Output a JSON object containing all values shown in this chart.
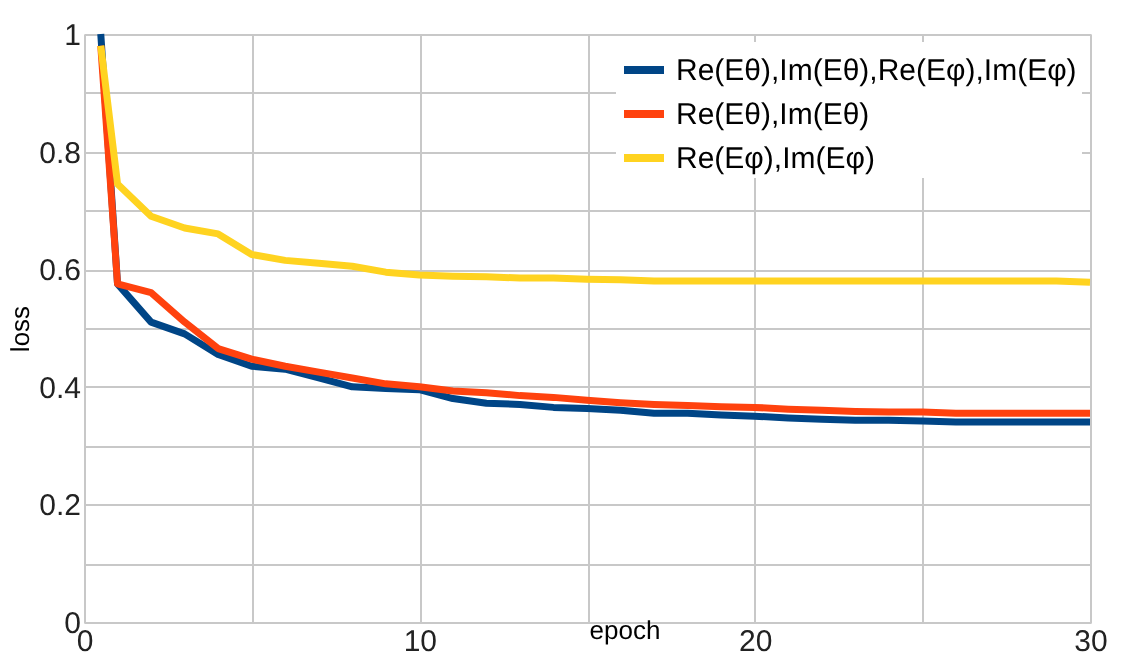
{
  "chart_data": {
    "type": "line",
    "xlabel": "epoch",
    "ylabel": "loss",
    "xlim": [
      0,
      30
    ],
    "xticks": [
      0,
      {
        "value": 5,
        "label": null
      },
      10,
      {
        "value": 15,
        "label": null
      },
      20,
      {
        "value": 25,
        "label": null
      },
      30
    ],
    "ylim": [
      0,
      1
    ],
    "yticks": [
      0,
      {
        "value": 0.1,
        "label": null
      },
      0.2,
      {
        "value": 0.3,
        "label": null
      },
      0.4,
      {
        "value": 0.5,
        "label": null
      },
      0.6,
      {
        "value": 0.7,
        "label": null
      },
      0.8,
      {
        "value": 0.9,
        "label": null
      },
      1
    ],
    "grid": true,
    "legend": "top right",
    "marker": "none",
    "line_style": "solid",
    "x": [
      0.5,
      1,
      2,
      3,
      4,
      5,
      6,
      7,
      8,
      9,
      10,
      11,
      12,
      13,
      14,
      15,
      16,
      17,
      18,
      19,
      20,
      21,
      22,
      23,
      24,
      25,
      26,
      27,
      28,
      29,
      30
    ],
    "series": [
      {
        "name": "Re(Eθ),Im(Eθ),Re(Eφ),Im(Eφ)",
        "color": "#004586",
        "values": [
          1.0,
          0.575,
          0.51,
          0.49,
          0.455,
          0.435,
          0.43,
          0.415,
          0.4,
          0.397,
          0.395,
          0.38,
          0.372,
          0.37,
          0.365,
          0.363,
          0.36,
          0.355,
          0.355,
          0.352,
          0.35,
          0.347,
          0.345,
          0.343,
          0.343,
          0.342,
          0.34,
          0.34,
          0.34,
          0.34,
          0.34
        ]
      },
      {
        "name": "Re(Eθ),Im(Eθ)",
        "color": "#ff420e",
        "values": [
          0.98,
          0.575,
          0.56,
          0.51,
          0.465,
          0.447,
          0.435,
          0.425,
          0.415,
          0.405,
          0.4,
          0.393,
          0.39,
          0.385,
          0.382,
          0.377,
          0.373,
          0.37,
          0.368,
          0.366,
          0.365,
          0.362,
          0.36,
          0.358,
          0.357,
          0.357,
          0.355,
          0.355,
          0.355,
          0.355,
          0.355
        ]
      },
      {
        "name": "Re(Eφ),Im(Eφ)",
        "color": "#ffd320",
        "values": [
          0.98,
          0.745,
          0.69,
          0.67,
          0.66,
          0.625,
          0.615,
          0.61,
          0.605,
          0.595,
          0.59,
          0.588,
          0.587,
          0.585,
          0.585,
          0.583,
          0.582,
          0.58,
          0.58,
          0.58,
          0.58,
          0.58,
          0.58,
          0.58,
          0.58,
          0.58,
          0.58,
          0.58,
          0.58,
          0.58,
          0.578
        ]
      }
    ]
  }
}
